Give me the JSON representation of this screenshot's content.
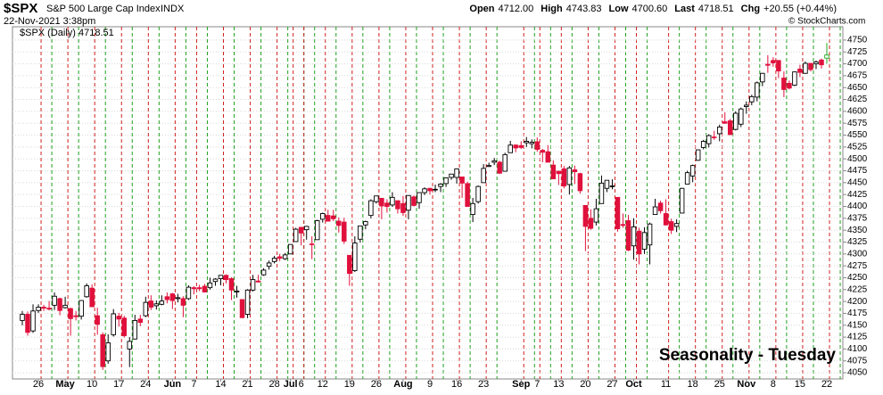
{
  "header": {
    "symbol": "$SPX",
    "name": "S&P 500 Large Cap Index",
    "exchange": "INDX",
    "datetime": "22-Nov-2021 3:38pm",
    "open_label": "Open",
    "open": "4712.00",
    "high_label": "High",
    "high": "4743.83",
    "low_label": "Low",
    "low": "4700.60",
    "last_label": "Last",
    "last": "4718.51",
    "chg_label": "Chg",
    "chg": "+20.55 (+0.44%)",
    "credit": "© StockCharts.com"
  },
  "chart_data": {
    "type": "candlestick",
    "legend": "$SPX (Daily) 4718.51",
    "annotation": "Seasonality - Tuesday",
    "up_color": "#000000",
    "down_color": "#e0103c",
    "last_color": "#22aa22",
    "annotation_color": "#1530d0",
    "categories": [
      null,
      null,
      null,
      "26",
      null,
      null,
      null,
      null,
      "May",
      null,
      null,
      null,
      null,
      "10",
      null,
      null,
      null,
      null,
      "17",
      null,
      null,
      null,
      null,
      "24",
      null,
      null,
      null,
      null,
      "Jun",
      null,
      null,
      null,
      "7",
      null,
      null,
      null,
      null,
      "14",
      null,
      null,
      null,
      null,
      "21",
      null,
      null,
      null,
      null,
      "28",
      null,
      null,
      "Jul",
      null,
      "6",
      null,
      null,
      null,
      "12",
      null,
      null,
      null,
      null,
      "19",
      null,
      null,
      null,
      null,
      "26",
      null,
      null,
      null,
      null,
      "Aug",
      null,
      null,
      null,
      null,
      "9",
      null,
      null,
      null,
      null,
      "16",
      null,
      null,
      null,
      null,
      "23",
      null,
      null,
      null,
      null,
      null,
      null,
      "Sep",
      null,
      null,
      "7",
      null,
      null,
      null,
      "13",
      null,
      null,
      null,
      null,
      "20",
      null,
      null,
      null,
      null,
      "27",
      null,
      null,
      null,
      "Oct",
      null,
      null,
      null,
      null,
      null,
      "11",
      null,
      null,
      null,
      null,
      "18",
      null,
      null,
      null,
      null,
      "25",
      null,
      null,
      null,
      null,
      "Nov",
      null,
      null,
      null,
      null,
      "8",
      null,
      null,
      null,
      null,
      "15",
      null,
      null,
      null,
      null,
      "22"
    ],
    "open": [
      4160,
      4173,
      4138,
      4181,
      4188,
      4186,
      4192,
      4206,
      4187,
      4185,
      4170,
      4169,
      4210,
      4228,
      4170,
      4130,
      4075,
      4130,
      4169,
      4165,
      4100,
      4121,
      4163,
      4170,
      4201,
      4191,
      4194,
      4210,
      4216,
      4206,
      4206,
      4206,
      4229,
      4229,
      4232,
      4229,
      4242,
      4248,
      4255,
      4248,
      4220,
      4204,
      4173,
      4224,
      4243,
      4256,
      4274,
      4284,
      4294,
      4290,
      4300,
      4326,
      4356,
      4351,
      4321,
      4330,
      4373,
      4381,
      4380,
      4369,
      4367,
      4297,
      4265,
      4331,
      4361,
      4381,
      4410,
      4417,
      4407,
      4403,
      4412,
      4406,
      4392,
      4420,
      4408,
      4429,
      4438,
      4435,
      4442,
      4448,
      4461,
      4461,
      4462,
      4448,
      4383,
      4410,
      4450,
      4484,
      4493,
      4493,
      4474,
      4513,
      4529,
      4528,
      4534,
      4532,
      4536,
      4518,
      4515,
      4487,
      4474,
      4479,
      4446,
      4477,
      4469,
      4402,
      4375,
      4367,
      4406,
      4438,
      4442,
      4419,
      4362,
      4370,
      4317,
      4348,
      4310,
      4319,
      4383,
      4407,
      4385,
      4368,
      4358,
      4386,
      4447,
      4464,
      4497,
      4524,
      4532,
      4546,
      4553,
      4578,
      4580,
      4562,
      4573,
      4610,
      4620,
      4630,
      4662,
      4699,
      4707,
      4707,
      4670,
      4659,
      4655,
      4689,
      4680,
      4701,
      4700,
      4708,
      4712
    ],
    "high": [
      4180,
      4179,
      4194,
      4194,
      4193,
      4201,
      4219,
      4208,
      4210,
      4187,
      4180,
      4202,
      4238,
      4236,
      4187,
      4135,
      4131,
      4184,
      4176,
      4170,
      4125,
      4172,
      4172,
      4210,
      4213,
      4202,
      4213,
      4219,
      4218,
      4216,
      4211,
      4234,
      4232,
      4235,
      4237,
      4250,
      4249,
      4255,
      4257,
      4251,
      4233,
      4204,
      4226,
      4256,
      4256,
      4270,
      4286,
      4296,
      4300,
      4302,
      4320,
      4355,
      4357,
      4359,
      4337,
      4372,
      4387,
      4393,
      4393,
      4377,
      4376,
      4297,
      4337,
      4359,
      4370,
      4415,
      4422,
      4416,
      4415,
      4430,
      4412,
      4422,
      4423,
      4423,
      4430,
      4440,
      4439,
      4446,
      4449,
      4461,
      4468,
      4480,
      4462,
      4452,
      4418,
      4444,
      4489,
      4492,
      4502,
      4496,
      4513,
      4538,
      4531,
      4537,
      4546,
      4541,
      4545,
      4521,
      4529,
      4497,
      4475,
      4485,
      4485,
      4486,
      4471,
      4402,
      4394,
      4416,
      4465,
      4455,
      4457,
      4419,
      4385,
      4382,
      4375,
      4355,
      4356,
      4366,
      4416,
      4412,
      4415,
      4374,
      4373,
      4439,
      4475,
      4488,
      4520,
      4540,
      4552,
      4559,
      4572,
      4598,
      4584,
      4600,
      4608,
      4621,
      4635,
      4663,
      4681,
      4718,
      4714,
      4708,
      4684,
      4665,
      4684,
      4698,
      4705,
      4701,
      4707,
      4711,
      4743.83
    ],
    "low": [
      4150,
      4128,
      4134,
      4176,
      4180,
      4181,
      4182,
      4171,
      4185,
      4128,
      4160,
      4162,
      4208,
      4188,
      4130,
      4056,
      4069,
      4126,
      4147,
      4124,
      4062,
      4120,
      4148,
      4167,
      4182,
      4183,
      4192,
      4196,
      4184,
      4198,
      4167,
      4203,
      4215,
      4222,
      4219,
      4225,
      4233,
      4234,
      4238,
      4203,
      4208,
      4165,
      4165,
      4221,
      4240,
      4254,
      4267,
      4280,
      4285,
      4287,
      4300,
      4326,
      4318,
      4330,
      4289,
      4330,
      4366,
      4368,
      4369,
      4345,
      4321,
      4233,
      4262,
      4324,
      4352,
      4375,
      4406,
      4373,
      4387,
      4399,
      4385,
      4380,
      4373,
      4400,
      4395,
      4424,
      4425,
      4430,
      4430,
      4441,
      4456,
      4448,
      4418,
      4399,
      4367,
      4406,
      4450,
      4483,
      4487,
      4468,
      4473,
      4513,
      4514,
      4521,
      4525,
      4522,
      4515,
      4493,
      4493,
      4458,
      4445,
      4438,
      4425,
      4447,
      4427,
      4306,
      4351,
      4360,
      4406,
      4430,
      4436,
      4347,
      4355,
      4306,
      4288,
      4278,
      4300,
      4278,
      4383,
      4385,
      4360,
      4342,
      4346,
      4386,
      4447,
      4451,
      4496,
      4520,
      4524,
      4540,
      4537,
      4574,
      4551,
      4560,
      4567,
      4595,
      4613,
      4621,
      4653,
      4681,
      4694,
      4670,
      4630,
      4646,
      4653,
      4672,
      4679,
      4684,
      4689,
      4690,
      4700.6
    ],
    "close": [
      4173,
      4135,
      4180,
      4188,
      4186,
      4184,
      4211,
      4181,
      4192,
      4164,
      4168,
      4202,
      4233,
      4189,
      4152,
      4063,
      4113,
      4174,
      4163,
      4128,
      4116,
      4160,
      4156,
      4198,
      4188,
      4195,
      4201,
      4204,
      4202,
      4208,
      4192,
      4230,
      4227,
      4227,
      4220,
      4239,
      4247,
      4255,
      4246,
      4224,
      4222,
      4166,
      4224,
      4246,
      4241,
      4266,
      4281,
      4291,
      4291,
      4298,
      4320,
      4352,
      4344,
      4358,
      4320,
      4370,
      4385,
      4369,
      4374,
      4360,
      4327,
      4259,
      4323,
      4359,
      4368,
      4412,
      4422,
      4401,
      4400,
      4419,
      4395,
      4387,
      4423,
      4402,
      4429,
      4437,
      4433,
      4436,
      4447,
      4460,
      4468,
      4479,
      4449,
      4400,
      4406,
      4442,
      4480,
      4486,
      4496,
      4470,
      4509,
      4529,
      4523,
      4524,
      4537,
      4535,
      4520,
      4514,
      4493,
      4458,
      4469,
      4443,
      4481,
      4473,
      4433,
      4358,
      4354,
      4395,
      4449,
      4455,
      4443,
      4353,
      4360,
      4308,
      4357,
      4300,
      4345,
      4363,
      4399,
      4391,
      4361,
      4350,
      4364,
      4438,
      4471,
      4486,
      4519,
      4537,
      4549,
      4545,
      4567,
      4575,
      4551,
      4596,
      4605,
      4613,
      4631,
      4660,
      4680,
      4697,
      4702,
      4685,
      4646,
      4649,
      4683,
      4682,
      4701,
      4688,
      4704,
      4698,
      4718.51
    ],
    "ylim": [
      4037,
      4778
    ],
    "yticks": [
      4050,
      4075,
      4100,
      4125,
      4150,
      4175,
      4200,
      4225,
      4250,
      4275,
      4300,
      4325,
      4350,
      4375,
      4400,
      4425,
      4450,
      4475,
      4500,
      4525,
      4550,
      4575,
      4600,
      4625,
      4650,
      4675,
      4700,
      4725,
      4750
    ],
    "grid": true
  }
}
